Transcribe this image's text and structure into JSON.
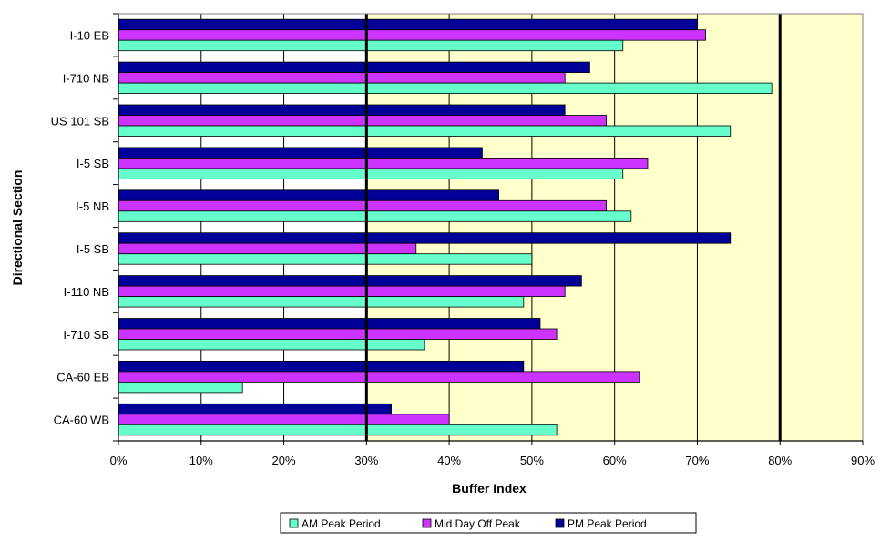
{
  "chart_data": {
    "type": "bar",
    "orientation": "horizontal",
    "categories": [
      "I-10 EB",
      "I-710 NB",
      "US 101 SB",
      "I-5 SB",
      "I-5 NB",
      "I-5 SB",
      "I-110 NB",
      "I-710 SB",
      "CA-60 EB",
      "CA-60 WB"
    ],
    "series": [
      {
        "name": "AM Peak Period",
        "color": "#66ffcc",
        "values": [
          61,
          79,
          74,
          61,
          62,
          50,
          49,
          37,
          15,
          53
        ]
      },
      {
        "name": "Mid Day Off Peak",
        "color": "#cc33ff",
        "values": [
          71,
          54,
          59,
          64,
          59,
          36,
          54,
          53,
          63,
          40
        ]
      },
      {
        "name": "PM Peak Period",
        "color": "#000099",
        "values": [
          70,
          57,
          54,
          44,
          46,
          74,
          56,
          51,
          49,
          33
        ]
      }
    ],
    "xlabel": "Buffer Index",
    "ylabel": "Directional Section",
    "xlim": [
      0,
      90
    ],
    "xticks": [
      "0%",
      "10%",
      "20%",
      "30%",
      "40%",
      "50%",
      "60%",
      "70%",
      "80%",
      "90%"
    ],
    "reference_lines": [
      30,
      80
    ],
    "shaded_region": [
      30,
      90
    ],
    "grid": true,
    "legend_position": "bottom"
  },
  "colors": {
    "shade": "#ffffcc",
    "plot_bg": "#ffffff",
    "border": "#808080"
  }
}
